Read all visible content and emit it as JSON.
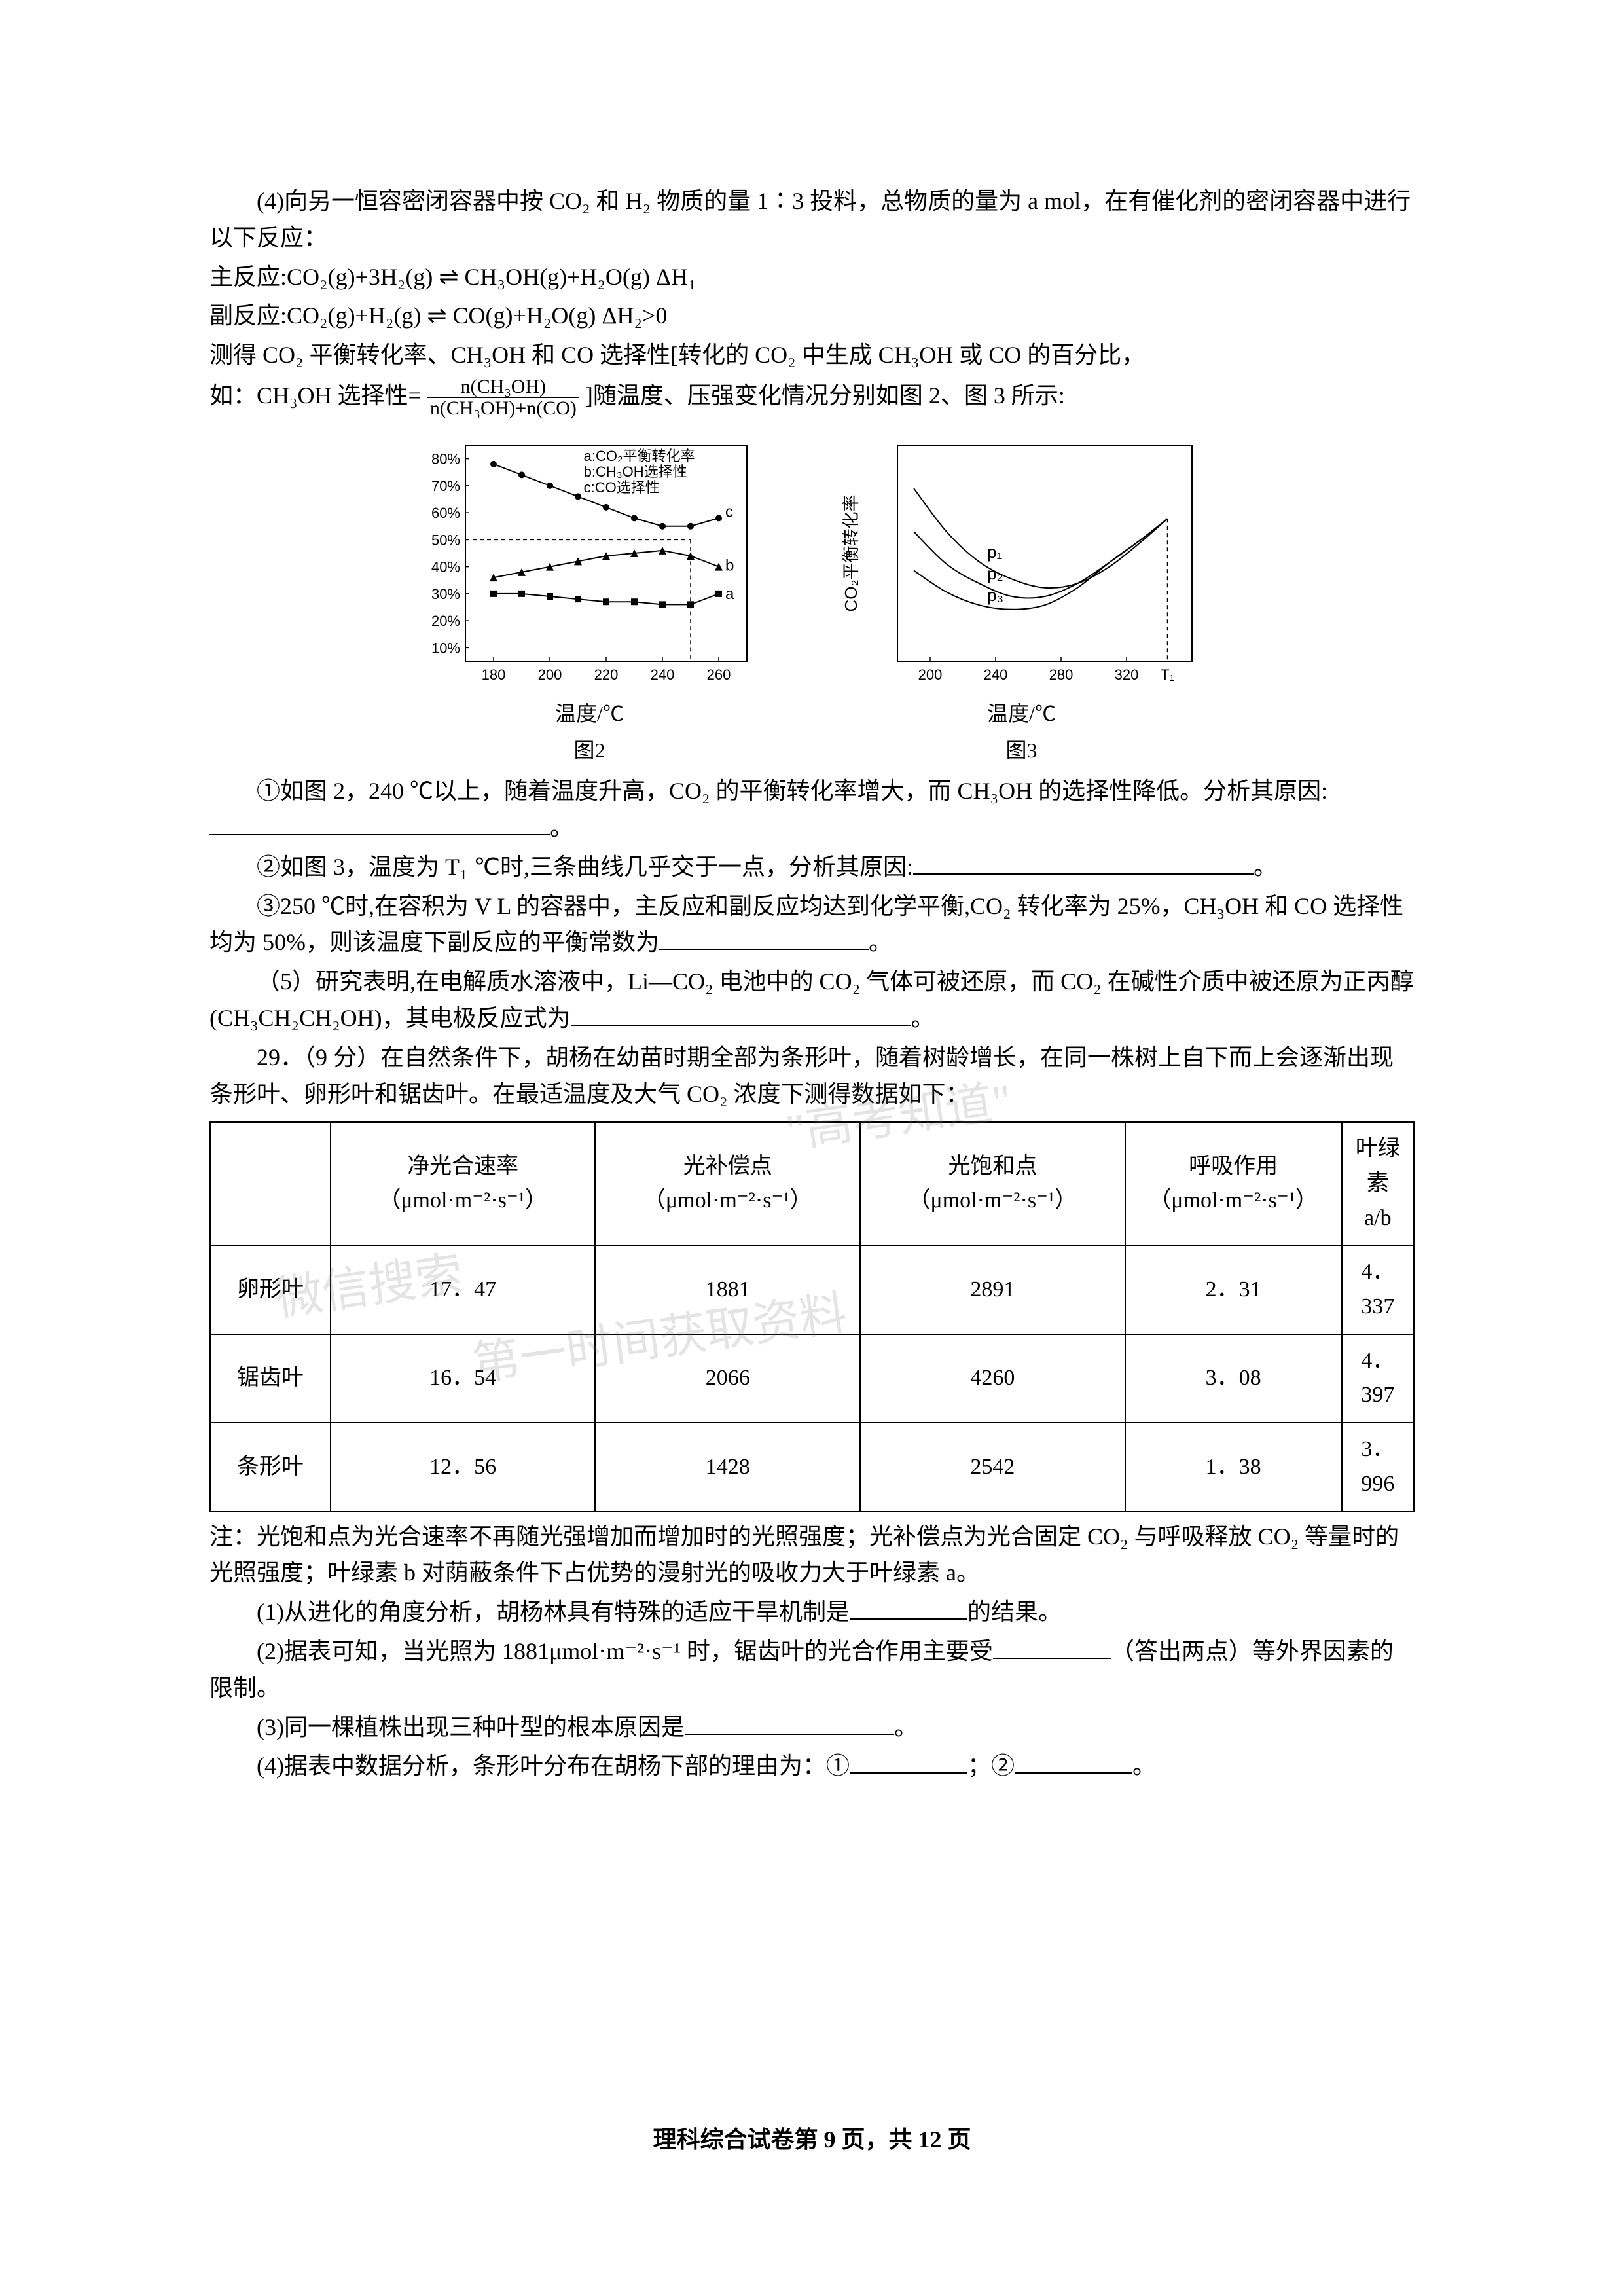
{
  "section4": {
    "intro": "(4)向另一恒容密闭容器中按 CO₂ 和 H₂ 物质的量 1∶3 投料，总物质的量为 a mol，在有催化剂的密闭容器中进行以下反应：",
    "mainRxnLabel": "主反应:",
    "mainRxn": "CO₂(g)+3H₂(g) ⇌ CH₃OH(g)+H₂O(g)   ΔH₁",
    "sideRxnLabel": "副反应:",
    "sideRxn": "CO₂(g)+H₂(g) ⇌ CO(g)+H₂O(g)   ΔH₂>0",
    "measured": "测得 CO₂ 平衡转化率、CH₃OH 和 CO 选择性[转化的 CO₂ 中生成 CH₃OH 或 CO 的百分比，",
    "selLabel": "如：CH₃OH 选择性=",
    "fracNum": "n(CH₃OH)",
    "fracDen": "n(CH₃OH)+n(CO)",
    "afterFrac": "]随温度、压强变化情况分别如图 2、图 3 所示:",
    "q1": "①如图 2，240 ℃以上，随着温度升高，CO₂ 的平衡转化率增大，而 CH₃OH 的选择性降低。分析其原因:",
    "q2": "②如图 3，温度为 T₁ ℃时,三条曲线几乎交于一点，分析其原因:",
    "q3": "③250 ℃时,在容积为 V L 的容器中，主反应和副反应均达到化学平衡,CO₂ 转化率为 25%，CH₃OH 和 CO 选择性均为 50%，则该温度下副反应的平衡常数为",
    "q5a": "（5）研究表明,在电解质水溶液中，Li—CO₂ 电池中的 CO₂ 气体可被还原，而 CO₂ 在碱性介质中被还原为正丙醇 (CH₃CH₂CH₂OH)，其电极反应式为",
    "period": "。"
  },
  "chart2": {
    "type": "line-scatter",
    "title": "图2",
    "xlabel": "温度/℃",
    "legend": {
      "a": "a:CO₂平衡转化率",
      "b": "b:CH₃OH选择性",
      "c": "c:CO选择性"
    },
    "xticks": [
      180,
      200,
      220,
      240,
      260
    ],
    "yticks_pct": [
      10,
      20,
      30,
      40,
      50,
      60,
      70,
      80
    ],
    "xlim": [
      170,
      270
    ],
    "ylim": [
      5,
      85
    ],
    "dash_x": 250,
    "dash_y": 50,
    "series": {
      "a_square": {
        "color": "#000000",
        "marker": "square",
        "points": [
          [
            180,
            30
          ],
          [
            190,
            30
          ],
          [
            200,
            29
          ],
          [
            210,
            28
          ],
          [
            220,
            27
          ],
          [
            230,
            27
          ],
          [
            240,
            26
          ],
          [
            250,
            26
          ],
          [
            260,
            30
          ]
        ]
      },
      "b_triangle": {
        "color": "#000000",
        "marker": "triangle",
        "points": [
          [
            180,
            36
          ],
          [
            190,
            38
          ],
          [
            200,
            40
          ],
          [
            210,
            42
          ],
          [
            220,
            44
          ],
          [
            230,
            45
          ],
          [
            240,
            46
          ],
          [
            250,
            44
          ],
          [
            260,
            40
          ]
        ]
      },
      "c_circle": {
        "color": "#000000",
        "marker": "circle",
        "points": [
          [
            180,
            78
          ],
          [
            190,
            74
          ],
          [
            200,
            70
          ],
          [
            210,
            66
          ],
          [
            220,
            62
          ],
          [
            230,
            58
          ],
          [
            240,
            55
          ],
          [
            250,
            55
          ],
          [
            260,
            58
          ]
        ]
      }
    },
    "line_width": 2,
    "marker_size": 5,
    "background": "#ffffff",
    "border": "#000000",
    "font_size_label": 26,
    "font_size_tick": 22
  },
  "chart3": {
    "type": "line",
    "title": "图3",
    "xlabel": "温度/℃",
    "ylabel": "CO₂平衡转化率",
    "xticks": [
      200,
      240,
      280,
      320
    ],
    "T1_label": "T₁",
    "T1_x": 345,
    "xlim": [
      180,
      360
    ],
    "ylim": [
      0,
      100
    ],
    "curves": {
      "p1": {
        "label": "p₁",
        "color": "#000000",
        "points": [
          [
            190,
            80
          ],
          [
            210,
            60
          ],
          [
            230,
            46
          ],
          [
            250,
            38
          ],
          [
            270,
            34
          ],
          [
            290,
            36
          ],
          [
            310,
            44
          ],
          [
            330,
            56
          ],
          [
            345,
            66
          ]
        ]
      },
      "p2": {
        "label": "p₂",
        "color": "#000000",
        "points": [
          [
            190,
            60
          ],
          [
            210,
            45
          ],
          [
            230,
            36
          ],
          [
            250,
            30
          ],
          [
            270,
            30
          ],
          [
            290,
            36
          ],
          [
            310,
            46
          ],
          [
            330,
            57
          ],
          [
            345,
            66
          ]
        ]
      },
      "p3": {
        "label": "p₃",
        "color": "#000000",
        "points": [
          [
            190,
            42
          ],
          [
            210,
            32
          ],
          [
            230,
            26
          ],
          [
            250,
            24
          ],
          [
            270,
            26
          ],
          [
            290,
            34
          ],
          [
            310,
            46
          ],
          [
            330,
            57
          ],
          [
            345,
            66
          ]
        ]
      }
    },
    "line_width": 2,
    "background": "#ffffff",
    "border": "#000000",
    "font_size_label": 26,
    "font_size_tick": 22
  },
  "q29": {
    "lead": "29．（9 分）在自然条件下，胡杨在幼苗时期全部为条形叶，随着树龄增长，在同一株树上自下而上会逐渐出现条形叶、卵形叶和锯齿叶。在最适温度及大气 CO₂ 浓度下测得数据如下：",
    "note": "注：光饱和点为光合速率不再随光强增加而增加时的光照强度；光补偿点为光合固定 CO₂ 与呼吸释放 CO₂ 等量时的光照强度；叶绿素 b 对荫蔽条件下占优势的漫射光的吸收力大于叶绿素 a。",
    "s1a": "(1)从进化的角度分析，胡杨林具有特殊的适应干旱机制是",
    "s1b": "的结果。",
    "s2a": "(2)据表可知，当光照为 1881μmol·m⁻²·s⁻¹ 时，锯齿叶的光合作用主要受",
    "s2b": "（答出两点）等外界因素的限制。",
    "s3a": "(3)同一棵植株出现三种叶型的根本原因是",
    "s4a": "(4)据表中数据分析，条形叶分布在胡杨下部的理由为：①",
    "s4mid": "；②",
    "period": "。"
  },
  "table": {
    "columns": [
      "",
      "净光合速率\n（μmol·m⁻²·s⁻¹）",
      "光补偿点\n（μmol·m⁻²·s⁻¹）",
      "光饱和点\n（μmol·m⁻²·s⁻¹）",
      "呼吸作用\n（μmol·m⁻²·s⁻¹）",
      "叶绿素\na/b"
    ],
    "col_widths_pct": [
      10,
      22,
      22,
      22,
      18,
      12
    ],
    "rows": [
      [
        "卵形叶",
        "17．47",
        "1881",
        "2891",
        "2．31",
        "4．337"
      ],
      [
        "锯齿叶",
        "16．54",
        "2066",
        "4260",
        "3．08",
        "4．397"
      ],
      [
        "条形叶",
        "12．56",
        "1428",
        "2542",
        "1．38",
        "3．996"
      ]
    ]
  },
  "watermarks": {
    "w1": "\"高考知道\"",
    "w2": "微信搜索",
    "w3": "第一时间获取资料"
  },
  "footer": "理科综合试卷第 9 页，共 12 页"
}
